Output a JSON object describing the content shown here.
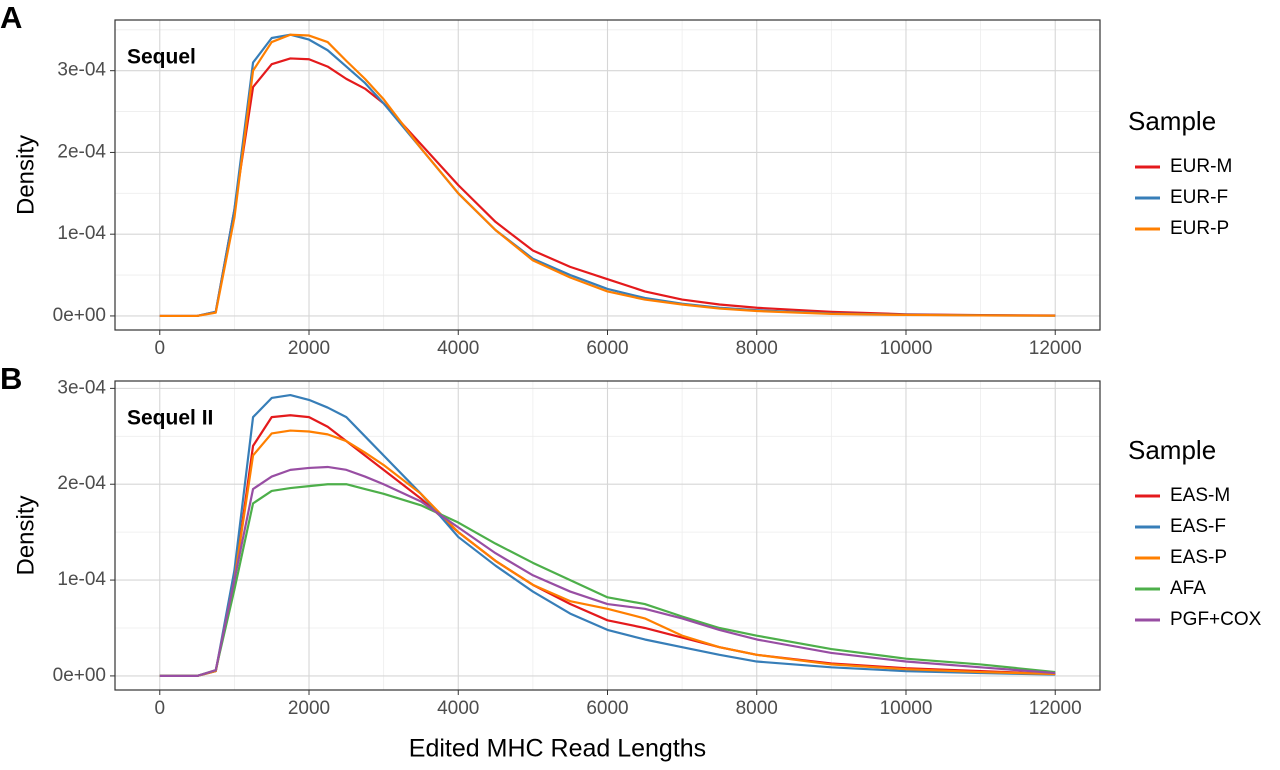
{
  "chart_data": [
    {
      "type": "line",
      "panel_label": "A",
      "annotation": "Sequel",
      "ylabel": "Density",
      "legend_title": "Sample",
      "x": [
        0,
        500,
        750,
        1000,
        1250,
        1500,
        1750,
        2000,
        2250,
        2500,
        2750,
        3000,
        3500,
        4000,
        4500,
        5000,
        5500,
        6000,
        6500,
        7000,
        7500,
        8000,
        9000,
        10000,
        11000,
        12000
      ],
      "xlim": [
        -600,
        12600
      ],
      "xticks": [
        0,
        2000,
        4000,
        6000,
        8000,
        10000,
        12000
      ],
      "xminorticks": [
        1000,
        3000,
        5000,
        7000,
        9000,
        11000
      ],
      "ylim": [
        -1.72e-05,
        0.000362
      ],
      "yticks": [
        {
          "value": 0,
          "label": "0e+00"
        },
        {
          "value": 0.0001,
          "label": "1e-04"
        },
        {
          "value": 0.0002,
          "label": "2e-04"
        },
        {
          "value": 0.0003,
          "label": "3e-04"
        }
      ],
      "yminorticks": [
        5e-05,
        0.00015,
        0.00025,
        0.00035
      ],
      "grid": true,
      "series": [
        {
          "name": "EUR-M",
          "color": "#e41a1c",
          "values": [
            0,
            0,
            5e-06,
            0.00013,
            0.00028,
            0.000308,
            0.000315,
            0.000314,
            0.000305,
            0.00029,
            0.000278,
            0.00026,
            0.00021,
            0.00016,
            0.000115,
            8e-05,
            6e-05,
            4.5e-05,
            3e-05,
            2e-05,
            1.4e-05,
            1e-05,
            5e-06,
            2e-06,
            1e-06,
            5e-07
          ]
        },
        {
          "name": "EUR-F",
          "color": "#377eb8",
          "values": [
            0,
            0,
            5e-06,
            0.00013,
            0.00031,
            0.00034,
            0.000344,
            0.000338,
            0.000325,
            0.000305,
            0.000285,
            0.00026,
            0.000205,
            0.00015,
            0.000105,
            7e-05,
            5e-05,
            3.3e-05,
            2.2e-05,
            1.5e-05,
            1e-05,
            7e-06,
            3e-06,
            1.5e-06,
            7e-07,
            3e-07
          ]
        },
        {
          "name": "EUR-P",
          "color": "#ff7f00",
          "values": [
            0,
            0,
            4e-06,
            0.00012,
            0.0003,
            0.000335,
            0.000344,
            0.000343,
            0.000335,
            0.000312,
            0.00029,
            0.000265,
            0.000205,
            0.00015,
            0.000105,
            6.8e-05,
            4.7e-05,
            3e-05,
            2e-05,
            1.4e-05,
            9e-06,
            6e-06,
            2.5e-06,
            1.2e-06,
            6e-07,
            3e-07
          ]
        }
      ]
    },
    {
      "type": "line",
      "panel_label": "B",
      "annotation": "Sequel II",
      "ylabel": "Density",
      "legend_title": "Sample",
      "xlabel": "Edited MHC Read Lengths",
      "x": [
        0,
        500,
        750,
        1000,
        1250,
        1500,
        1750,
        2000,
        2250,
        2500,
        2750,
        3000,
        3500,
        4000,
        4500,
        5000,
        5500,
        6000,
        6500,
        7000,
        7500,
        8000,
        9000,
        10000,
        11000,
        12000
      ],
      "xlim": [
        -600,
        12600
      ],
      "xticks": [
        0,
        2000,
        4000,
        6000,
        8000,
        10000,
        12000
      ],
      "xminorticks": [
        1000,
        3000,
        5000,
        7000,
        9000,
        11000
      ],
      "ylim": [
        -1.47e-05,
        0.0003077
      ],
      "yticks": [
        {
          "value": 0,
          "label": "0e+00"
        },
        {
          "value": 0.0001,
          "label": "1e-04"
        },
        {
          "value": 0.0002,
          "label": "2e-04"
        },
        {
          "value": 0.0003,
          "label": "3e-04"
        }
      ],
      "yminorticks": [
        5e-05,
        0.00015,
        0.00025
      ],
      "grid": true,
      "series": [
        {
          "name": "EAS-M",
          "color": "#e41a1c",
          "values": [
            0,
            0,
            5e-06,
            0.0001,
            0.00024,
            0.00027,
            0.000272,
            0.00027,
            0.00026,
            0.000245,
            0.00023,
            0.000215,
            0.000185,
            0.00015,
            0.00012,
            9.5e-05,
            7.5e-05,
            5.8e-05,
            5e-05,
            4e-05,
            3e-05,
            2.2e-05,
            1.3e-05,
            8e-06,
            5e-06,
            2e-06
          ]
        },
        {
          "name": "EAS-F",
          "color": "#377eb8",
          "values": [
            0,
            0,
            5e-06,
            0.00011,
            0.00027,
            0.00029,
            0.000293,
            0.000288,
            0.00028,
            0.00027,
            0.00025,
            0.00023,
            0.00019,
            0.000145,
            0.000115,
            8.8e-05,
            6.5e-05,
            4.8e-05,
            3.8e-05,
            3e-05,
            2.2e-05,
            1.5e-05,
            9e-06,
            5e-06,
            3e-06,
            1.5e-06
          ]
        },
        {
          "name": "EAS-P",
          "color": "#ff7f00",
          "values": [
            0,
            0,
            5e-06,
            0.0001,
            0.00023,
            0.000253,
            0.000256,
            0.000255,
            0.000252,
            0.000245,
            0.000233,
            0.00022,
            0.00019,
            0.00015,
            0.00012,
            9.5e-05,
            7.8e-05,
            7e-05,
            6e-05,
            4.2e-05,
            3e-05,
            2.2e-05,
            1.2e-05,
            7e-06,
            4e-06,
            2e-06
          ]
        },
        {
          "name": "AFA",
          "color": "#4daf4a",
          "values": [
            0,
            0,
            6e-06,
            9e-05,
            0.00018,
            0.000193,
            0.000196,
            0.000198,
            0.0002,
            0.0002,
            0.000195,
            0.00019,
            0.000178,
            0.00016,
            0.000138,
            0.000118,
            0.0001,
            8.2e-05,
            7.5e-05,
            6.2e-05,
            5e-05,
            4.2e-05,
            2.8e-05,
            1.8e-05,
            1.2e-05,
            4e-06
          ]
        },
        {
          "name": "PGF+COX",
          "color": "#984ea3",
          "values": [
            0,
            0,
            6e-06,
            0.0001,
            0.000195,
            0.000208,
            0.000215,
            0.000217,
            0.000218,
            0.000215,
            0.000208,
            0.0002,
            0.000182,
            0.000155,
            0.000128,
            0.000105,
            8.8e-05,
            7.5e-05,
            7e-05,
            6e-05,
            4.8e-05,
            3.8e-05,
            2.4e-05,
            1.5e-05,
            9e-06,
            3e-06
          ]
        }
      ]
    }
  ]
}
